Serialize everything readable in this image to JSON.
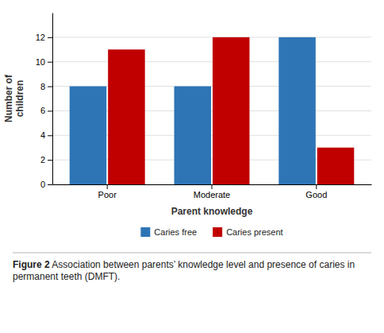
{
  "chart_data": {
    "type": "bar",
    "categories": [
      "Poor",
      "Moderate",
      "Good"
    ],
    "series": [
      {
        "name": "Caries free",
        "color": "#2E75B6",
        "values": [
          8,
          8,
          12
        ]
      },
      {
        "name": "Caries present",
        "color": "#C00000",
        "values": [
          11,
          12,
          3
        ]
      }
    ],
    "xlabel": "Parent knowledge",
    "ylabel": "Number of\nchildren",
    "ylim": [
      0,
      14
    ],
    "yticks": [
      0,
      2,
      4,
      6,
      8,
      10,
      12
    ],
    "grid": true,
    "legend": "bottom",
    "annotations": [
      "Figure 2",
      " Association between parents’ knowledge level and presence of caries in permanent teeth (DMFT)."
    ]
  }
}
